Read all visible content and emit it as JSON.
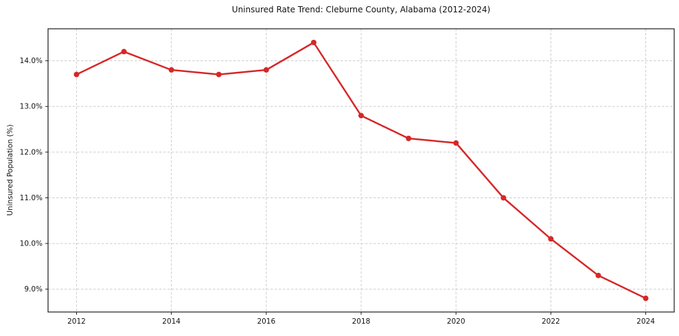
{
  "chart_data": {
    "type": "line",
    "title": "Uninsured Rate Trend: Cleburne County, Alabama (2012-2024)",
    "ylabel": "Uninsured Population (%)",
    "xlabel": "",
    "x": [
      2012,
      2013,
      2014,
      2015,
      2016,
      2017,
      2018,
      2019,
      2020,
      2021,
      2022,
      2023,
      2024
    ],
    "y": [
      13.7,
      14.2,
      13.8,
      13.7,
      13.8,
      14.4,
      12.8,
      12.3,
      12.2,
      11.0,
      10.1,
      9.3,
      8.8
    ],
    "xtick_values": [
      2012,
      2014,
      2016,
      2018,
      2020,
      2022,
      2024
    ],
    "xtick_labels": [
      "2012",
      "2014",
      "2016",
      "2018",
      "2020",
      "2022",
      "2024"
    ],
    "ytick_values": [
      9,
      10,
      11,
      12,
      13,
      14
    ],
    "ytick_labels": [
      "9.0%",
      "10.0%",
      "11.0%",
      "12.0%",
      "13.0%",
      "14.0%"
    ],
    "xlim": [
      2011.4,
      2024.6
    ],
    "ylim": [
      8.5,
      14.7
    ],
    "grid": true,
    "grid_style": "dashed",
    "legend": "none",
    "colors": {
      "line": "#d62728",
      "marker": "#d62728",
      "grid": "#cccccc",
      "spine": "#1a1a1a",
      "text": "#111111",
      "background": "#ffffff"
    }
  }
}
